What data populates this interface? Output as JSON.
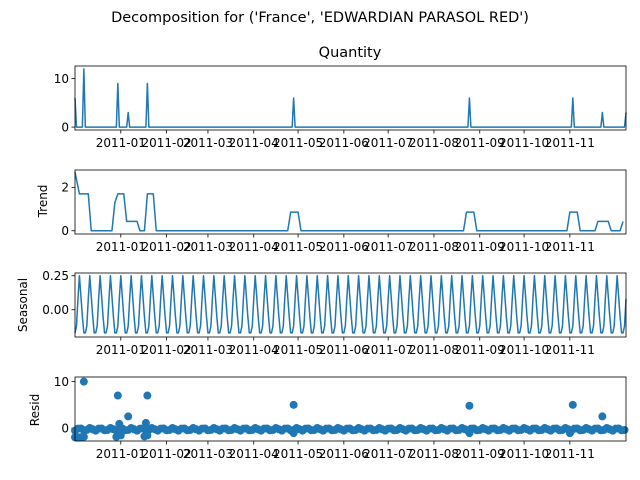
{
  "title": "Decomposition for ('France', 'EDWARDIAN PARASOL RED')",
  "colors": {
    "line": "#1f77b4",
    "axis": "#000000",
    "background": "#ffffff"
  },
  "x_tick_labels": [
    "2011-01",
    "2011-02",
    "2011-03",
    "2011-04",
    "2011-05",
    "2011-06",
    "2011-07",
    "2011-08",
    "2011-09",
    "2011-10",
    "2011-11"
  ],
  "chart_data": [
    {
      "type": "line",
      "title": "Quantity",
      "ylabel": "",
      "x_range": [
        "2010-12-01",
        "2011-12-09"
      ],
      "ylim": [
        -0.6,
        12.6
      ],
      "y_ticks": [
        0,
        10
      ],
      "x_ticks": [
        "2011-01",
        "2011-02",
        "2011-03",
        "2011-04",
        "2011-05",
        "2011-06",
        "2011-07",
        "2011-08",
        "2011-09",
        "2011-10",
        "2011-11"
      ],
      "frequency": "daily",
      "baseline": 0,
      "points": [
        {
          "x": "2010-12-01",
          "y": 6
        },
        {
          "x": "2010-12-07",
          "y": 12
        },
        {
          "x": "2010-12-30",
          "y": 9
        },
        {
          "x": "2011-01-06",
          "y": 3
        },
        {
          "x": "2011-01-19",
          "y": 9
        },
        {
          "x": "2011-04-28",
          "y": 6
        },
        {
          "x": "2011-08-25",
          "y": 6
        },
        {
          "x": "2011-11-03",
          "y": 6
        },
        {
          "x": "2011-11-23",
          "y": 3
        },
        {
          "x": "2011-12-09",
          "y": 3
        }
      ]
    },
    {
      "type": "line",
      "title": "",
      "ylabel": "Trend",
      "x_range": [
        "2010-12-01",
        "2011-12-09"
      ],
      "ylim": [
        -0.15,
        2.8
      ],
      "y_ticks": [
        0,
        2
      ],
      "x_ticks": [
        "2011-01",
        "2011-02",
        "2011-03",
        "2011-04",
        "2011-05",
        "2011-06",
        "2011-07",
        "2011-08",
        "2011-09",
        "2011-10",
        "2011-11"
      ],
      "points": [
        [
          "2010-12-01",
          2.7
        ],
        [
          "2010-12-04",
          1.7
        ],
        [
          "2010-12-10",
          1.7
        ],
        [
          "2010-12-12",
          0
        ],
        [
          "2010-12-26",
          0
        ],
        [
          "2010-12-28",
          1.3
        ],
        [
          "2010-12-30",
          1.7
        ],
        [
          "2011-01-03",
          1.7
        ],
        [
          "2011-01-05",
          0.43
        ],
        [
          "2011-01-12",
          0.43
        ],
        [
          "2011-01-14",
          0
        ],
        [
          "2011-01-17",
          0
        ],
        [
          "2011-01-19",
          1.7
        ],
        [
          "2011-01-23",
          1.7
        ],
        [
          "2011-01-25",
          0
        ],
        [
          "2011-04-24",
          0
        ],
        [
          "2011-04-26",
          0.86
        ],
        [
          "2011-05-01",
          0.86
        ],
        [
          "2011-05-03",
          0
        ],
        [
          "2011-08-21",
          0
        ],
        [
          "2011-08-23",
          0.86
        ],
        [
          "2011-08-28",
          0.86
        ],
        [
          "2011-08-30",
          0
        ],
        [
          "2011-10-30",
          0
        ],
        [
          "2011-11-01",
          0.86
        ],
        [
          "2011-11-06",
          0.86
        ],
        [
          "2011-11-08",
          0
        ],
        [
          "2011-11-18",
          0
        ],
        [
          "2011-11-20",
          0.43
        ],
        [
          "2011-11-27",
          0.43
        ],
        [
          "2011-11-29",
          0
        ],
        [
          "2011-12-05",
          0
        ],
        [
          "2011-12-07",
          0.43
        ]
      ]
    },
    {
      "type": "line",
      "title": "",
      "ylabel": "Seasonal",
      "x_range": [
        "2010-12-01",
        "2011-12-09"
      ],
      "ylim": [
        -0.2,
        0.27
      ],
      "y_ticks": [
        0.0,
        0.25
      ],
      "y_tick_labels": [
        "0.00",
        "0.25"
      ],
      "x_ticks": [
        "2011-01",
        "2011-02",
        "2011-03",
        "2011-04",
        "2011-05",
        "2011-06",
        "2011-07",
        "2011-08",
        "2011-09",
        "2011-10",
        "2011-11"
      ],
      "period_days": 7,
      "weekly_pattern": [
        -0.17,
        -0.12,
        0.08,
        0.25,
        0.1,
        -0.05,
        -0.17
      ]
    },
    {
      "type": "scatter",
      "title": "",
      "ylabel": "Resid",
      "x_range": [
        "2010-12-01",
        "2011-12-09"
      ],
      "ylim": [
        -2.8,
        11
      ],
      "y_ticks": [
        0,
        10
      ],
      "x_ticks": [
        "2011-01",
        "2011-02",
        "2011-03",
        "2011-04",
        "2011-05",
        "2011-06",
        "2011-07",
        "2011-08",
        "2011-09",
        "2011-10",
        "2011-11"
      ],
      "baseline_line": true,
      "points": [
        [
          "2010-12-07",
          10
        ],
        [
          "2010-12-30",
          7
        ],
        [
          "2011-01-06",
          2.5
        ],
        [
          "2011-01-19",
          7
        ],
        [
          "2011-01-18",
          1.1
        ],
        [
          "2010-12-31",
          0.9
        ],
        [
          "2011-04-28",
          5
        ],
        [
          "2011-08-25",
          4.8
        ],
        [
          "2011-11-03",
          5
        ],
        [
          "2011-11-23",
          2.5
        ]
      ]
    }
  ]
}
